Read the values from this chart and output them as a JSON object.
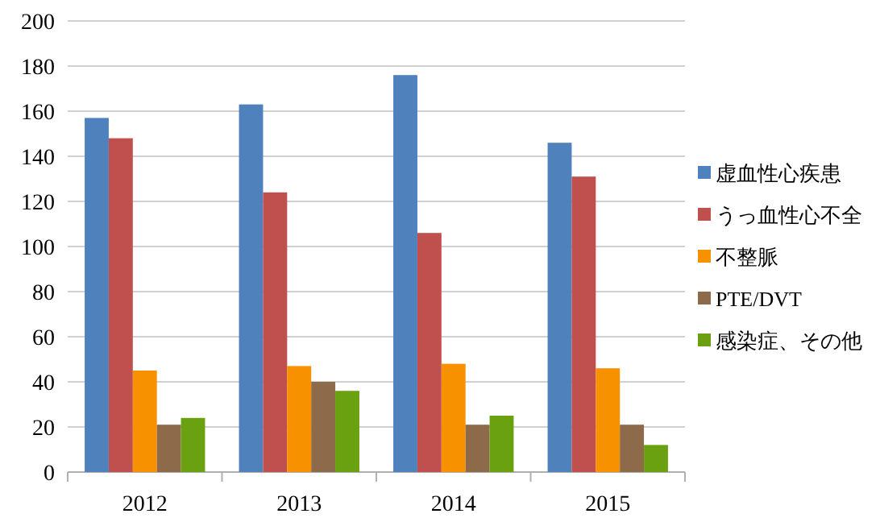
{
  "chart_data": {
    "type": "bar",
    "categories": [
      "2012",
      "2013",
      "2014",
      "2015"
    ],
    "series": [
      {
        "name": "虚血性心疾患",
        "color": "#4f81bd",
        "values": [
          157,
          163,
          176,
          146
        ]
      },
      {
        "name": "うっ血性心不全",
        "color": "#c0504d",
        "values": [
          148,
          124,
          106,
          131
        ]
      },
      {
        "name": "不整脈",
        "color": "#f79100",
        "values": [
          45,
          47,
          48,
          46
        ]
      },
      {
        "name": "PTE/DVT",
        "color": "#8c6a4a",
        "values": [
          21,
          40,
          21,
          21
        ]
      },
      {
        "name": "感染症、その他",
        "color": "#6aa111",
        "values": [
          24,
          36,
          25,
          12
        ]
      }
    ],
    "ylim": [
      0,
      200
    ],
    "yticks": [
      0,
      20,
      40,
      60,
      80,
      100,
      120,
      140,
      160,
      180,
      200
    ],
    "grid": "y",
    "legend": "right"
  }
}
